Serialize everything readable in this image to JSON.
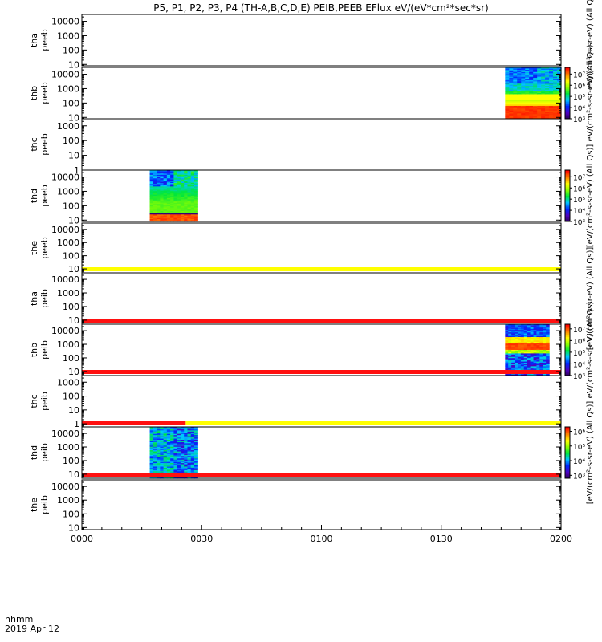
{
  "chart_data": {
    "type": "heatmap",
    "title": "P5, P1, P2, P3, P4 (TH-A,B,C,D,E) PEIB,PEEB EFlux eV/(eV*cm²*sec*sr)",
    "time_axis": {
      "unit_label": "hhmm",
      "date_label": "2019 Apr 12",
      "start_minutes": 0,
      "end_minutes": 120,
      "ticks": [
        {
          "minutes": 0,
          "label": "0000"
        },
        {
          "minutes": 30,
          "label": "0030"
        },
        {
          "minutes": 60,
          "label": "0100"
        },
        {
          "minutes": 90,
          "label": "0130"
        },
        {
          "minutes": 120,
          "label": "0200"
        }
      ]
    },
    "panels": [
      {
        "probe": "tha",
        "instrument": "peeb",
        "ylim": [
          8,
          30000
        ],
        "yticks": [
          "10",
          "100",
          "1000",
          "10000"
        ],
        "data": null
      },
      {
        "probe": "thb",
        "instrument": "peeb",
        "ylim": [
          8,
          30000
        ],
        "yticks": [
          "10",
          "100",
          "1000",
          "10000"
        ],
        "data": {
          "t_start": 106,
          "t_end": 120,
          "pattern": "electron-hot"
        }
      },
      {
        "probe": "thc",
        "instrument": "peeb",
        "ylim": [
          1,
          3000
        ],
        "yticks": [
          "1",
          "10",
          "100",
          "1000"
        ],
        "data": null
      },
      {
        "probe": "thd",
        "instrument": "peeb",
        "ylim": [
          8,
          30000
        ],
        "yticks": [
          "10",
          "100",
          "1000",
          "10000"
        ],
        "data": {
          "t_start": 17,
          "t_end": 29,
          "pattern": "electron-warm"
        }
      },
      {
        "probe": "the",
        "instrument": "peeb",
        "ylim": [
          5,
          30000
        ],
        "yticks": [
          "10",
          "100",
          "1000",
          "10000"
        ],
        "data": null,
        "flag": [
          {
            "t_start": 0,
            "t_end": 120,
            "color": "#ffff00"
          }
        ]
      },
      {
        "probe": "tha",
        "instrument": "peib",
        "ylim": [
          5,
          30000
        ],
        "yticks": [
          "10",
          "100",
          "1000",
          "10000"
        ],
        "data": null,
        "flag": [
          {
            "t_start": 0,
            "t_end": 120,
            "color": "#ff1010"
          }
        ]
      },
      {
        "probe": "thb",
        "instrument": "peib",
        "ylim": [
          5,
          30000
        ],
        "yticks": [
          "10",
          "100",
          "1000",
          "10000"
        ],
        "data": {
          "t_start": 106,
          "t_end": 117,
          "pattern": "ion-hot"
        },
        "flag": [
          {
            "t_start": 0,
            "t_end": 120,
            "color": "#ff1010"
          }
        ]
      },
      {
        "probe": "thc",
        "instrument": "peib",
        "ylim": [
          0.6,
          3000
        ],
        "yticks": [
          "1",
          "10",
          "100",
          "1000"
        ],
        "data": null,
        "flag": [
          {
            "t_start": 0,
            "t_end": 26,
            "color": "#ff1010"
          },
          {
            "t_start": 26,
            "t_end": 120,
            "color": "#ffff00"
          }
        ]
      },
      {
        "probe": "thd",
        "instrument": "peib",
        "ylim": [
          5,
          30000
        ],
        "yticks": [
          "10",
          "100",
          "1000",
          "10000"
        ],
        "data": {
          "t_start": 17,
          "t_end": 29,
          "pattern": "ion-warm"
        },
        "flag": [
          {
            "t_start": 0,
            "t_end": 120,
            "color": "#ff1010"
          }
        ]
      },
      {
        "probe": "the",
        "instrument": "peib",
        "ylim": [
          7,
          30000
        ],
        "yticks": [
          "10",
          "100",
          "1000",
          "10000"
        ],
        "data": null
      }
    ],
    "colorbars": [
      {
        "exp_min": 3,
        "exp_max": 7.6,
        "ticks": [
          "10³",
          "10⁴",
          "10⁵",
          "10⁶",
          "10⁷"
        ],
        "tick_exps": [
          3,
          4,
          5,
          6,
          7
        ]
      },
      {
        "exp_min": 3,
        "exp_max": 7.6,
        "ticks": [
          "10³",
          "10⁴",
          "10⁵",
          "10⁶",
          "10⁷"
        ],
        "tick_exps": [
          3,
          4,
          5,
          6,
          7
        ]
      },
      {
        "exp_min": 3,
        "exp_max": 7.4,
        "ticks": [
          "10³",
          "10⁴",
          "10⁵",
          "10⁶",
          "10⁷"
        ],
        "tick_exps": [
          3,
          4,
          5,
          6,
          7
        ]
      },
      {
        "exp_min": 2.8,
        "exp_max": 6.3,
        "ticks": [
          "10³",
          "10⁴",
          "10⁵",
          "10⁶"
        ],
        "tick_exps": [
          3,
          4,
          5,
          6
        ]
      }
    ],
    "colorbar_labels": {
      "cb_a": "eV/(cm²-s-sr-eV) (All Qs)",
      "cb_b": "eV/(cm²-s-sr-eV) (All Qs)",
      "cb_c": "[eV/(cm²-s-sr-eV) (All Qs)]",
      "cb_d": "[eV/(cm²-s-sr-eV) (All Qs)]",
      "cb_e": "eV/(cm²-s-sr-eV) (All Qs)",
      "cb_f": "[eV/(cm²-s-sr-eV) (All Qs)]"
    }
  }
}
